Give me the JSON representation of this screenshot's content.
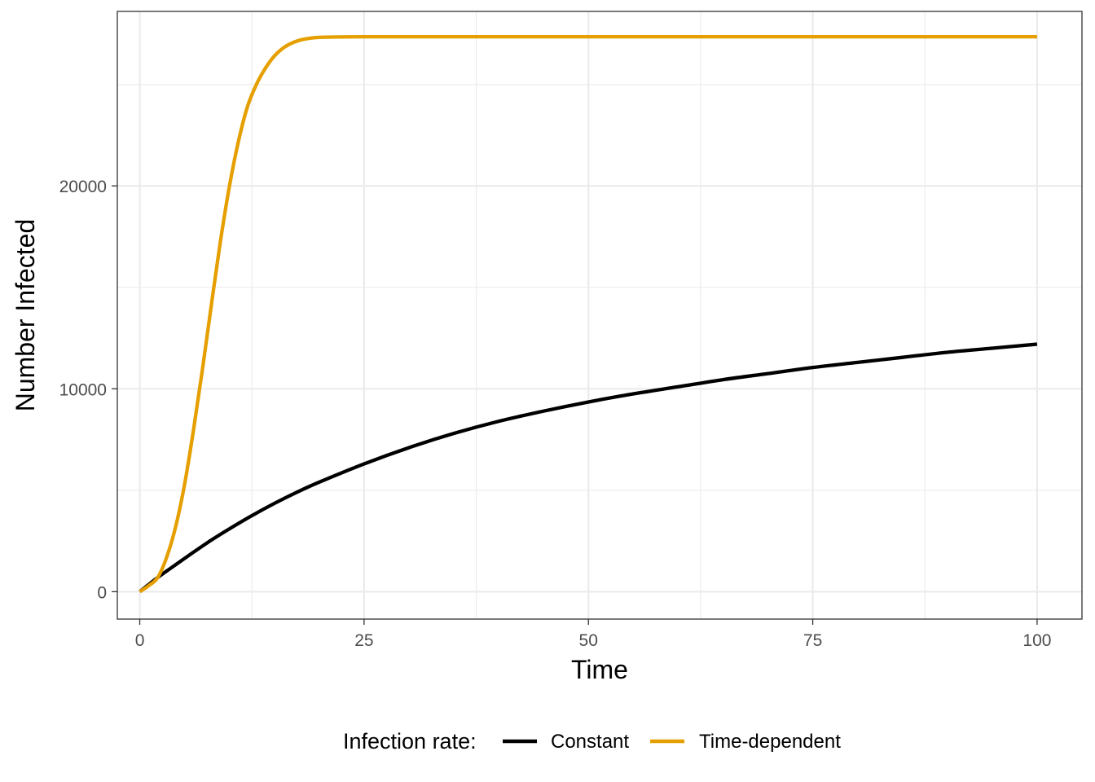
{
  "chart_data": {
    "type": "line",
    "title": "",
    "xlabel": "Time",
    "ylabel": "Number Infected",
    "xlim": [
      -2.5,
      105
    ],
    "ylim": [
      -1350,
      28600
    ],
    "x_ticks": [
      0,
      25,
      50,
      75,
      100
    ],
    "x_tick_labels": [
      "0",
      "25",
      "50",
      "75",
      "100"
    ],
    "y_ticks": [
      0,
      10000,
      20000
    ],
    "y_tick_labels": [
      "0",
      "10000",
      "20000"
    ],
    "x_minor_gridlines": [
      12.5,
      37.5,
      62.5,
      87.5
    ],
    "y_minor_gridlines": [
      5000,
      15000,
      25000
    ],
    "grid": true,
    "legend": {
      "title": "Infection rate:",
      "position": "bottom"
    },
    "series": [
      {
        "name": "Constant",
        "color": "#000000",
        "x": [
          0,
          2,
          4,
          6,
          8,
          10,
          12.5,
          15,
          17.5,
          20,
          25,
          30,
          35,
          40,
          45,
          50,
          55,
          60,
          65,
          70,
          75,
          80,
          85,
          90,
          95,
          100
        ],
        "y": [
          0,
          700,
          1330,
          1950,
          2550,
          3100,
          3750,
          4350,
          4900,
          5400,
          6300,
          7100,
          7800,
          8400,
          8900,
          9350,
          9750,
          10100,
          10450,
          10750,
          11050,
          11300,
          11550,
          11800,
          12000,
          12200
        ]
      },
      {
        "name": "Time-dependent",
        "color": "#E69F00",
        "x": [
          0,
          1,
          2,
          3,
          4,
          5,
          6,
          7,
          8,
          9,
          10,
          11,
          12,
          13,
          14,
          15,
          16,
          17,
          18,
          19,
          20,
          22,
          25,
          30,
          40,
          50,
          75,
          100
        ],
        "y": [
          0,
          300,
          700,
          1700,
          3200,
          5300,
          8000,
          11000,
          14200,
          17300,
          20000,
          22200,
          23900,
          25000,
          25800,
          26400,
          26800,
          27050,
          27200,
          27280,
          27320,
          27340,
          27350,
          27350,
          27350,
          27350,
          27350,
          27350
        ]
      }
    ]
  }
}
